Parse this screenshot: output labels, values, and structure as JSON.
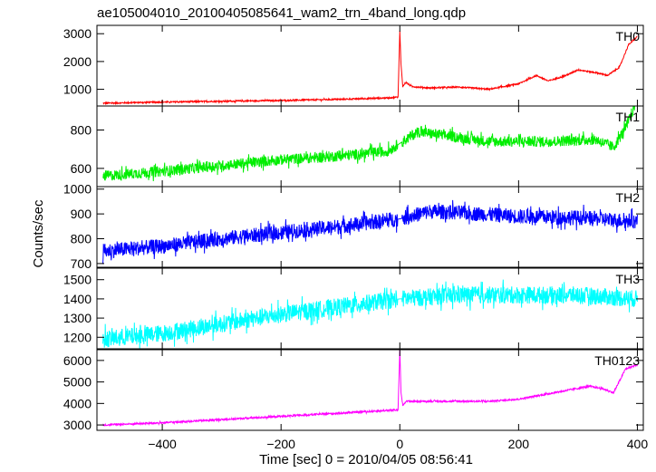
{
  "chart_data": {
    "type": "line",
    "title": "ae105004010_20100405085641_wam2_trn_4band_long.qdp",
    "xlabel": "Time [sec] 0 = 2010/04/05 08:56:41",
    "ylabel": "Counts/sec",
    "xlim": [
      -510,
      410
    ],
    "xticks": [
      -400,
      -200,
      0,
      200,
      400
    ],
    "xtick_labels": [
      "−400",
      "−200",
      "0",
      "200",
      "400"
    ],
    "grid": false,
    "panels": [
      {
        "name": "TH0",
        "color": "#ff0000",
        "ylim": [
          400,
          3300
        ],
        "yticks": [
          1000,
          2000,
          3000
        ],
        "noise": 25,
        "points": [
          [
            -500,
            500
          ],
          [
            -400,
            540
          ],
          [
            -300,
            570
          ],
          [
            -200,
            600
          ],
          [
            -100,
            640
          ],
          [
            -20,
            690
          ],
          [
            -3,
            720
          ],
          [
            0,
            3100
          ],
          [
            2,
            1900
          ],
          [
            5,
            1100
          ],
          [
            10,
            1250
          ],
          [
            20,
            1100
          ],
          [
            50,
            1050
          ],
          [
            100,
            1080
          ],
          [
            150,
            1000
          ],
          [
            200,
            1200
          ],
          [
            230,
            1500
          ],
          [
            250,
            1300
          ],
          [
            280,
            1500
          ],
          [
            300,
            1700
          ],
          [
            330,
            1600
          ],
          [
            350,
            1500
          ],
          [
            370,
            1800
          ],
          [
            385,
            2600
          ],
          [
            400,
            2900
          ]
        ]
      },
      {
        "name": "TH1",
        "color": "#00ee00",
        "ylim": [
          505,
          925
        ],
        "yticks": [
          600,
          800
        ],
        "noise": 28,
        "points": [
          [
            -500,
            560
          ],
          [
            -400,
            585
          ],
          [
            -300,
            615
          ],
          [
            -200,
            645
          ],
          [
            -100,
            665
          ],
          [
            -20,
            690
          ],
          [
            0,
            730
          ],
          [
            30,
            790
          ],
          [
            80,
            770
          ],
          [
            150,
            740
          ],
          [
            250,
            740
          ],
          [
            330,
            750
          ],
          [
            360,
            710
          ],
          [
            380,
            810
          ],
          [
            400,
            960
          ]
        ]
      },
      {
        "name": "TH2",
        "color": "#0000ff",
        "ylim": [
          685,
          1010
        ],
        "yticks": [
          700,
          800,
          900,
          1000
        ],
        "noise": 30,
        "points": [
          [
            -500,
            750
          ],
          [
            -400,
            770
          ],
          [
            -300,
            800
          ],
          [
            -200,
            825
          ],
          [
            -100,
            850
          ],
          [
            0,
            880
          ],
          [
            50,
            910
          ],
          [
            100,
            905
          ],
          [
            200,
            890
          ],
          [
            300,
            885
          ],
          [
            400,
            870
          ]
        ]
      },
      {
        "name": "TH3",
        "color": "#00ffff",
        "ylim": [
          1140,
          1560
        ],
        "yticks": [
          1200,
          1300,
          1400,
          1500
        ],
        "noise": 45,
        "points": [
          [
            -500,
            1190
          ],
          [
            -400,
            1220
          ],
          [
            -300,
            1270
          ],
          [
            -200,
            1320
          ],
          [
            -100,
            1360
          ],
          [
            0,
            1400
          ],
          [
            100,
            1420
          ],
          [
            200,
            1420
          ],
          [
            300,
            1420
          ],
          [
            400,
            1400
          ]
        ]
      },
      {
        "name": "TH0123",
        "color": "#ff00ff",
        "ylim": [
          2750,
          6500
        ],
        "yticks": [
          3000,
          4000,
          5000,
          6000
        ],
        "noise": 40,
        "points": [
          [
            -500,
            3000
          ],
          [
            -400,
            3100
          ],
          [
            -300,
            3250
          ],
          [
            -200,
            3400
          ],
          [
            -100,
            3550
          ],
          [
            -3,
            3700
          ],
          [
            0,
            6500
          ],
          [
            2,
            4500
          ],
          [
            5,
            3900
          ],
          [
            10,
            4100
          ],
          [
            50,
            4100
          ],
          [
            150,
            4100
          ],
          [
            200,
            4200
          ],
          [
            280,
            4600
          ],
          [
            320,
            4800
          ],
          [
            340,
            4700
          ],
          [
            360,
            4500
          ],
          [
            380,
            5600
          ],
          [
            400,
            5800
          ]
        ]
      }
    ]
  }
}
